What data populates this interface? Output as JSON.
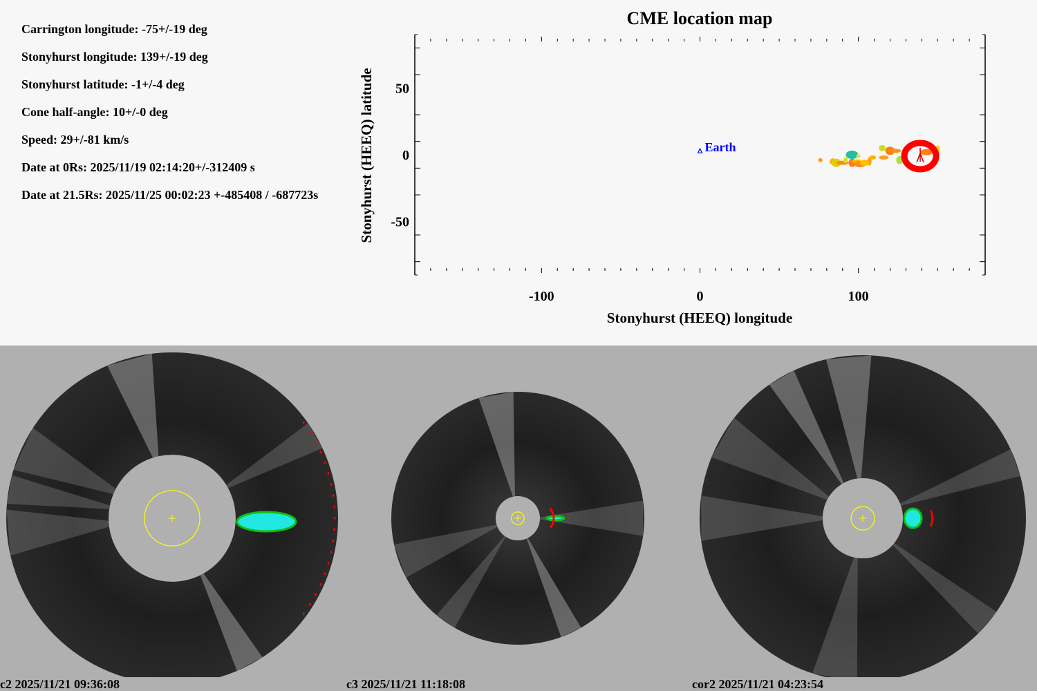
{
  "info": {
    "carrington_longitude": "Carrington longitude: -75+/-19 deg",
    "stonyhurst_longitude": "Stonyhurst longitude: 139+/-19 deg",
    "stonyhurst_latitude": "Stonyhurst latitude: -1+/-4 deg",
    "cone_half_angle": "Cone half-angle: 10+/-0 deg",
    "speed": "Speed: 29+/-81 km/s",
    "date_0rs": "Date at 0Rs: 2025/11/19 02:14:20+/-312409 s",
    "date_21_5rs": "Date at 21.5Rs: 2025/11/25 00:02:23 +-485408 / -687723s"
  },
  "chart_data": {
    "type": "scatter",
    "title": "CME location map",
    "xlabel": "Stonyhurst (HEEQ) longitude",
    "ylabel": "Stonyhurst (HEEQ) latitude",
    "xlim": [
      -180,
      180
    ],
    "ylim": [
      -90,
      90
    ],
    "xticks": [
      -100,
      0,
      100
    ],
    "xtick_labels": [
      "-100",
      "0",
      "100"
    ],
    "yticks": [
      50,
      0,
      -50
    ],
    "ytick_labels": [
      "50",
      "0",
      "-50"
    ],
    "x_minor_step": 10,
    "y_minor_ticks": [
      80,
      60,
      30,
      10,
      -10,
      -30,
      -60,
      -80
    ],
    "grid": false,
    "earth": {
      "label": "Earth",
      "lon": 0,
      "lat": 3,
      "color": "#0000ff"
    },
    "cme_marker": {
      "lon": 139,
      "lat": -1,
      "color": "#ff0000"
    },
    "density_points": [
      {
        "lon": 76,
        "lat": -4,
        "c": "#ff9a1a"
      },
      {
        "lon": 84,
        "lat": -5,
        "c": "#ffb000"
      },
      {
        "lon": 86,
        "lat": -6,
        "c": "#e0d000"
      },
      {
        "lon": 90,
        "lat": -6,
        "c": "#ff8c1a"
      },
      {
        "lon": 92,
        "lat": -4,
        "c": "#d8e020"
      },
      {
        "lon": 96,
        "lat": -6,
        "c": "#ff7a10"
      },
      {
        "lon": 99,
        "lat": -5,
        "c": "#ffb800"
      },
      {
        "lon": 101,
        "lat": -7,
        "c": "#ff8a1a"
      },
      {
        "lon": 107,
        "lat": -5,
        "c": "#ffa000"
      },
      {
        "lon": 109,
        "lat": -2,
        "c": "#ffb400"
      },
      {
        "lon": 104,
        "lat": -6,
        "c": "#ffc000"
      },
      {
        "lon": 96,
        "lat": 0,
        "c": "#20c0a0"
      },
      {
        "lon": 100,
        "lat": -1,
        "c": "#e8e040"
      },
      {
        "lon": 115,
        "lat": 5,
        "c": "#c8e020"
      },
      {
        "lon": 120,
        "lat": 3,
        "c": "#ff8010"
      },
      {
        "lon": 123,
        "lat": 3,
        "c": "#ff9020"
      },
      {
        "lon": 129,
        "lat": 1,
        "c": "#ff7a10"
      },
      {
        "lon": 126,
        "lat": -4,
        "c": "#b0e040"
      },
      {
        "lon": 116,
        "lat": -2,
        "c": "#ffa020"
      },
      {
        "lon": 143,
        "lat": 2,
        "c": "#ff8010"
      },
      {
        "lon": 150,
        "lat": 4,
        "c": "#ffd000"
      }
    ]
  },
  "panels": [
    {
      "caption": "c2 2025/11/21 09:36:08",
      "fov_ratio": 0.383,
      "sun_ratio": 0.167
    },
    {
      "caption": "c3 2025/11/21 11:18:08",
      "fov_ratio": 0.175,
      "sun_ratio": 0.05
    },
    {
      "caption": "cor2 2025/11/21 04:23:54",
      "fov_ratio": 0.246,
      "sun_ratio": 0.072
    }
  ],
  "colors": {
    "top_bg": "#f7f7f7",
    "bottom_bg": "#b0b0b0",
    "sun_circle": "#ffff00",
    "front_marks": "#ff0000"
  }
}
